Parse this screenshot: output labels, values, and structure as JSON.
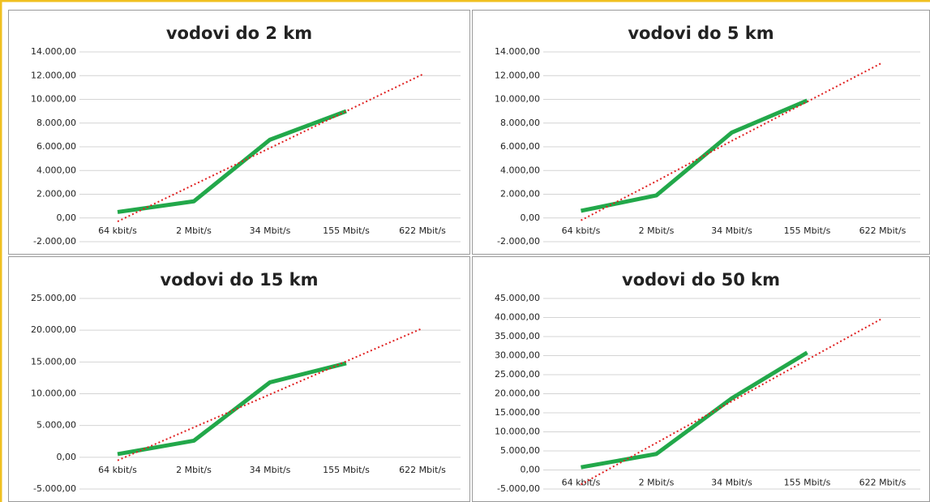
{
  "chart_data": [
    {
      "type": "line",
      "title": "vodovi do 2 km",
      "categories": [
        "64 kbit/s",
        "2 Mbit/s",
        "34 Mbit/s",
        "155 Mbit/s",
        "622 Mbit/s"
      ],
      "series": [
        {
          "color": "#22a84a",
          "values": [
            500,
            1400,
            6600,
            9000,
            null
          ]
        },
        {
          "color": "#e02020",
          "style": "dotted",
          "values": [
            -300,
            2800,
            5900,
            9000,
            12100
          ]
        }
      ],
      "ylim": [
        -2000,
        14000
      ],
      "yticks": [
        {
          "value": -2000,
          "label": "-2.000,00"
        },
        {
          "value": 0,
          "label": "0,00"
        },
        {
          "value": 2000,
          "label": "2.000,00"
        },
        {
          "value": 4000,
          "label": "4.000,00"
        },
        {
          "value": 6000,
          "label": "6.000,00"
        },
        {
          "value": 8000,
          "label": "8.000,00"
        },
        {
          "value": 10000,
          "label": "10.000,00"
        },
        {
          "value": 12000,
          "label": "12.000,00"
        },
        {
          "value": 14000,
          "label": "14.000,00"
        }
      ],
      "grid": true
    },
    {
      "type": "line",
      "title": "vodovi do 5 km",
      "categories": [
        "64 kbit/s",
        "2 Mbit/s",
        "34 Mbit/s",
        "155 Mbit/s",
        "622 Mbit/s"
      ],
      "series": [
        {
          "color": "#22a84a",
          "values": [
            600,
            1900,
            7200,
            9900,
            null
          ]
        },
        {
          "color": "#e02020",
          "style": "dotted",
          "values": [
            -200,
            3100,
            6500,
            9800,
            13100
          ]
        }
      ],
      "ylim": [
        -2000,
        14000
      ],
      "yticks": [
        {
          "value": -2000,
          "label": "-2.000,00"
        },
        {
          "value": 0,
          "label": "0,00"
        },
        {
          "value": 2000,
          "label": "2.000,00"
        },
        {
          "value": 4000,
          "label": "4.000,00"
        },
        {
          "value": 6000,
          "label": "6.000,00"
        },
        {
          "value": 8000,
          "label": "8.000,00"
        },
        {
          "value": 10000,
          "label": "10.000,00"
        },
        {
          "value": 12000,
          "label": "12.000,00"
        },
        {
          "value": 14000,
          "label": "14.000,00"
        }
      ],
      "grid": true
    },
    {
      "type": "line",
      "title": "vodovi do 15 km",
      "categories": [
        "64 kbit/s",
        "2 Mbit/s",
        "34 Mbit/s",
        "155 Mbit/s",
        "622 Mbit/s"
      ],
      "series": [
        {
          "color": "#22a84a",
          "values": [
            500,
            2600,
            11800,
            14800,
            null
          ]
        },
        {
          "color": "#e02020",
          "style": "dotted",
          "values": [
            -500,
            4700,
            9900,
            15100,
            20300
          ]
        }
      ],
      "ylim": [
        -5000,
        25000
      ],
      "yticks": [
        {
          "value": -5000,
          "label": "-5.000,00"
        },
        {
          "value": 0,
          "label": "0,00"
        },
        {
          "value": 5000,
          "label": "5.000,00"
        },
        {
          "value": 10000,
          "label": "10.000,00"
        },
        {
          "value": 15000,
          "label": "15.000,00"
        },
        {
          "value": 20000,
          "label": "20.000,00"
        },
        {
          "value": 25000,
          "label": "25.000,00"
        }
      ],
      "grid": true
    },
    {
      "type": "line",
      "title": "vodovi do 50 km",
      "categories": [
        "64 kbit/s",
        "2 Mbit/s",
        "34 Mbit/s",
        "155 Mbit/s",
        "622 Mbit/s"
      ],
      "series": [
        {
          "color": "#22a84a",
          "values": [
            700,
            4200,
            18800,
            30800,
            null
          ]
        },
        {
          "color": "#e02020",
          "style": "dotted",
          "values": [
            -3800,
            7100,
            18000,
            28900,
            39800
          ]
        }
      ],
      "ylim": [
        -5000,
        45000
      ],
      "yticks": [
        {
          "value": -5000,
          "label": "-5.000,00"
        },
        {
          "value": 0,
          "label": "0,00"
        },
        {
          "value": 5000,
          "label": "5.000,00"
        },
        {
          "value": 10000,
          "label": "10.000,00"
        },
        {
          "value": 15000,
          "label": "15.000,00"
        },
        {
          "value": 20000,
          "label": "20.000,00"
        },
        {
          "value": 25000,
          "label": "25.000,00"
        },
        {
          "value": 30000,
          "label": "30.000,00"
        },
        {
          "value": 35000,
          "label": "35.000,00"
        },
        {
          "value": 40000,
          "label": "40.000,00"
        },
        {
          "value": 45000,
          "label": "45.000,00"
        }
      ],
      "grid": true
    }
  ]
}
